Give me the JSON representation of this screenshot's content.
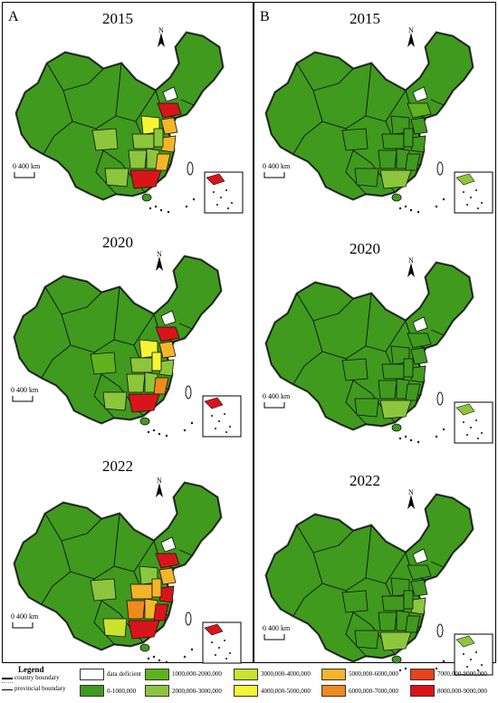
{
  "panels": {
    "a": {
      "letter": "A"
    },
    "b": {
      "letter": "B"
    }
  },
  "maps": {
    "a": [
      {
        "year": "2015",
        "north_label": "N",
        "scale_label": "0  400 km"
      },
      {
        "year": "2020",
        "north_label": "N",
        "scale_label": "0  400 km"
      },
      {
        "year": "2022",
        "north_label": "N",
        "scale_label": "0  400 km"
      }
    ],
    "b": [
      {
        "year": "2015",
        "north_label": "N",
        "scale_label": "0  400 km"
      },
      {
        "year": "2020",
        "north_label": "N",
        "scale_label": "0  400 km"
      },
      {
        "year": "2022",
        "north_label": "N",
        "scale_label": "0  400 km"
      }
    ]
  },
  "legend": {
    "title": "Legend",
    "country_boundary": "country boundary",
    "provincial_boundary": "provincial boundary",
    "classes": [
      {
        "label": "data deficient",
        "color": "#ffffff"
      },
      {
        "label": "0-1000,000",
        "color": "#3f9a1e"
      },
      {
        "label": "1000,000-2000,000",
        "color": "#5fb21c"
      },
      {
        "label": "2000,000-3000,000",
        "color": "#8cc63c"
      },
      {
        "label": "3000,000-4000,000",
        "color": "#c9e22e"
      },
      {
        "label": "4000,000-5000,000",
        "color": "#f5f535"
      },
      {
        "label": "5000,000-6000,000",
        "color": "#f5b52a"
      },
      {
        "label": "6000,000-7000,000",
        "color": "#ee8a1e"
      },
      {
        "label": "7000,000-8000,000",
        "color": "#e8421a"
      },
      {
        "label": "8000,000-9000,000",
        "color": "#d8151b"
      }
    ]
  }
}
